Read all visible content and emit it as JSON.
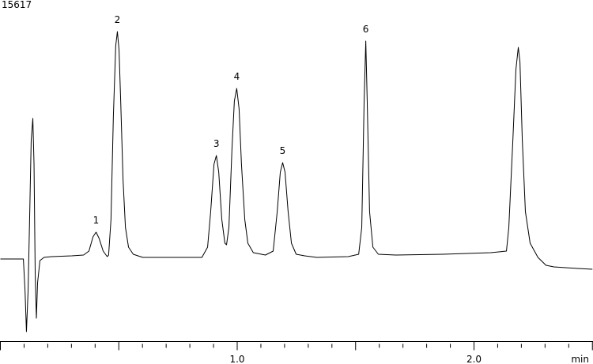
{
  "chart_data": {
    "type": "line",
    "title": "15617",
    "x_label": "min",
    "x": [
      0,
      0.083,
      0.097,
      0.104,
      0.11,
      0.117,
      0.124,
      0.13,
      0.137,
      0.142,
      0.147,
      0.152,
      0.157,
      0.167,
      0.184,
      0.217,
      0.301,
      0.351,
      0.374,
      0.391,
      0.404,
      0.417,
      0.434,
      0.451,
      0.457,
      0.467,
      0.477,
      0.487,
      0.494,
      0.501,
      0.508,
      0.518,
      0.528,
      0.541,
      0.561,
      0.601,
      0.735,
      0.851,
      0.875,
      0.888,
      0.902,
      0.912,
      0.922,
      0.935,
      0.948,
      0.955,
      0.965,
      0.978,
      0.988,
      0.998,
      1.008,
      1.018,
      1.032,
      1.045,
      1.068,
      1.119,
      1.152,
      1.169,
      1.182,
      1.192,
      1.202,
      1.215,
      1.229,
      1.249,
      1.285,
      1.336,
      1.469,
      1.513,
      1.526,
      1.536,
      1.543,
      1.549,
      1.559,
      1.573,
      1.596,
      1.669,
      1.87,
      2.07,
      2.137,
      2.147,
      2.164,
      2.177,
      2.187,
      2.194,
      2.204,
      2.217,
      2.237,
      2.27,
      2.304,
      2.337,
      2.437,
      2.5
    ],
    "series": [
      {
        "color": "#000000",
        "values": [
          0,
          0,
          0,
          -40,
          -92,
          -40,
          60,
          150,
          178,
          120,
          -20,
          -75,
          -30,
          -2,
          2,
          3,
          4,
          5,
          10,
          28,
          34,
          26,
          10,
          3,
          5,
          50,
          180,
          270,
          288,
          265,
          200,
          100,
          40,
          15,
          6,
          2,
          2,
          2,
          15,
          60,
          120,
          131,
          110,
          50,
          20,
          18,
          40,
          140,
          200,
          216,
          190,
          120,
          50,
          20,
          8,
          5,
          10,
          60,
          110,
          122,
          110,
          60,
          20,
          6,
          4,
          2,
          3,
          6,
          40,
          200,
          276,
          200,
          60,
          15,
          6,
          5,
          6,
          8,
          10,
          40,
          150,
          240,
          268,
          250,
          150,
          60,
          20,
          2,
          -8,
          -10,
          -12,
          -13
        ]
      }
    ],
    "annotations": [
      {
        "text": "1",
        "x": 0.404,
        "y": 34
      },
      {
        "text": "2",
        "x": 0.494,
        "y": 288
      },
      {
        "text": "3",
        "x": 0.912,
        "y": 131
      },
      {
        "text": "4",
        "x": 0.998,
        "y": 216
      },
      {
        "text": "5",
        "x": 1.192,
        "y": 122
      },
      {
        "text": "6",
        "x": 1.543,
        "y": 276
      }
    ],
    "xlim": [
      0,
      2.5
    ],
    "ylim": [
      -102,
      328
    ],
    "xticks": [
      0,
      0.5,
      {
        "value": 1,
        "label": "1.0"
      },
      1.5,
      {
        "value": 2,
        "label": "2.0"
      },
      2.5
    ],
    "xminor_ticks": [
      0.1,
      0.2,
      0.3,
      0.4,
      0.6,
      0.7,
      0.8,
      0.9,
      1.1,
      1.2,
      1.3,
      1.4,
      1.6,
      1.7,
      1.8,
      1.9,
      2.1,
      2.2,
      2.3,
      2.4
    ]
  }
}
